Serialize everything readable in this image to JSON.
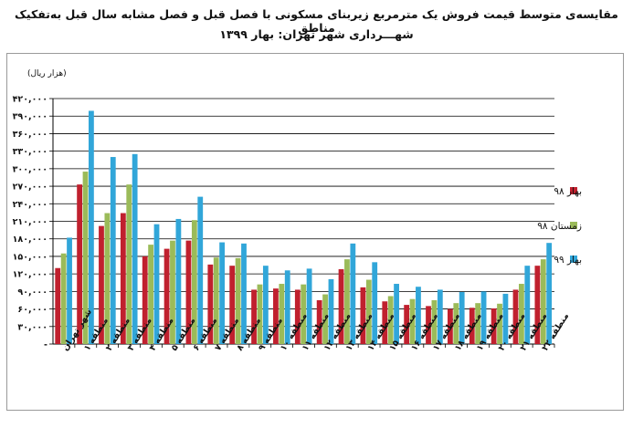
{
  "chart_data": {
    "type": "bar",
    "title": "مقایسه‌ی متوسط قیمت فروش یک مترمربع زیربنای مسکونی با فصل قبل و فصل مشابه سال قبل به‌تفکیک مناطق",
    "subtitle": "شهـــرداری شهر تهران: بهار ۱۳۹۹",
    "ylabel": "(هزار ریال)",
    "ylim": [
      0,
      420000
    ],
    "yticks": [
      "-",
      "۳۰,۰۰۰",
      "۶۰,۰۰۰",
      "۹۰,۰۰۰",
      "۱۲۰,۰۰۰",
      "۱۵۰,۰۰۰",
      "۱۸۰,۰۰۰",
      "۲۱۰,۰۰۰",
      "۲۴۰,۰۰۰",
      "۲۷۰,۰۰۰",
      "۳۰۰,۰۰۰",
      "۳۳۰,۰۰۰",
      "۳۶۰,۰۰۰",
      "۳۹۰,۰۰۰",
      "۴۲۰,۰۰۰"
    ],
    "categories": [
      "شهر تهران",
      "منطقه ۱",
      "منطقه ۲",
      "منطقه ۳",
      "منطقه ۴",
      "منطقه ۵",
      "منطقه ۶",
      "منطقه ۷",
      "منطقه ۸",
      "منطقه ۹",
      "منطقه ۱۰",
      "منطقه ۱۱",
      "منطقه ۱۲",
      "منطقه ۱۳",
      "منطقه ۱۴",
      "منطقه ۱۵",
      "منطقه ۱۶",
      "منطقه ۱۷",
      "منطقه ۱۸",
      "منطقه ۱۹",
      "منطقه ۲۰",
      "منطقه ۲۱",
      "منطقه ۲۲"
    ],
    "series": [
      {
        "name": "بهار ۹۸",
        "color": "#c0202e",
        "values": [
          130000,
          273000,
          202000,
          224000,
          150000,
          163000,
          177000,
          136000,
          134000,
          93000,
          95000,
          93000,
          75000,
          128000,
          97000,
          73000,
          67000,
          65000,
          60000,
          62000,
          61000,
          93000,
          134000
        ]
      },
      {
        "name": "زمستان ۹۸",
        "color": "#9bbb59",
        "values": [
          155000,
          295000,
          224000,
          273000,
          170000,
          177000,
          212000,
          148000,
          147000,
          102000,
          103000,
          102000,
          85000,
          145000,
          110000,
          82000,
          77000,
          75000,
          70000,
          70000,
          69000,
          103000,
          145000
        ]
      },
      {
        "name": "بهار ۹۹",
        "color": "#31a6d9",
        "values": [
          182000,
          399000,
          320000,
          325000,
          205000,
          214000,
          252000,
          174000,
          172000,
          134000,
          126000,
          129000,
          111000,
          172000,
          140000,
          103000,
          98000,
          93000,
          89000,
          90000,
          86000,
          134000,
          173000
        ]
      }
    ],
    "legend": "right"
  }
}
